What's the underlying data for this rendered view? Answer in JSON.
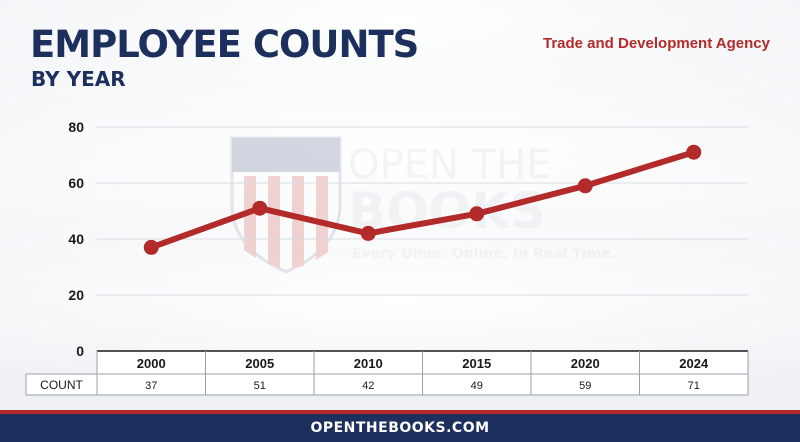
{
  "header": {
    "title": "EMPLOYEE COUNTS",
    "subtitle": "BY YEAR",
    "agency": "Trade and Development Agency"
  },
  "watermark": {
    "line1": "OPEN THE",
    "line2": "BOOKS",
    "tagline": "Every Dime. Online. In Real Time."
  },
  "footer": {
    "site": "OPENTHEBOOKS.COM"
  },
  "colors": {
    "navy": "#1c2f5d",
    "red": "#b32a2a",
    "line": "#b32a2a"
  },
  "chart_data": {
    "type": "line",
    "title": "EMPLOYEE COUNTS",
    "subtitle": "BY YEAR",
    "categories": [
      "2000",
      "2005",
      "2010",
      "2015",
      "2020",
      "2024"
    ],
    "series": [
      {
        "name": "COUNT",
        "values": [
          37,
          51,
          42,
          49,
          59,
          71
        ]
      }
    ],
    "yticks": [
      0,
      20,
      40,
      60,
      80
    ],
    "ylim": [
      0,
      80
    ],
    "grid": true,
    "legend": "none",
    "table": true
  }
}
